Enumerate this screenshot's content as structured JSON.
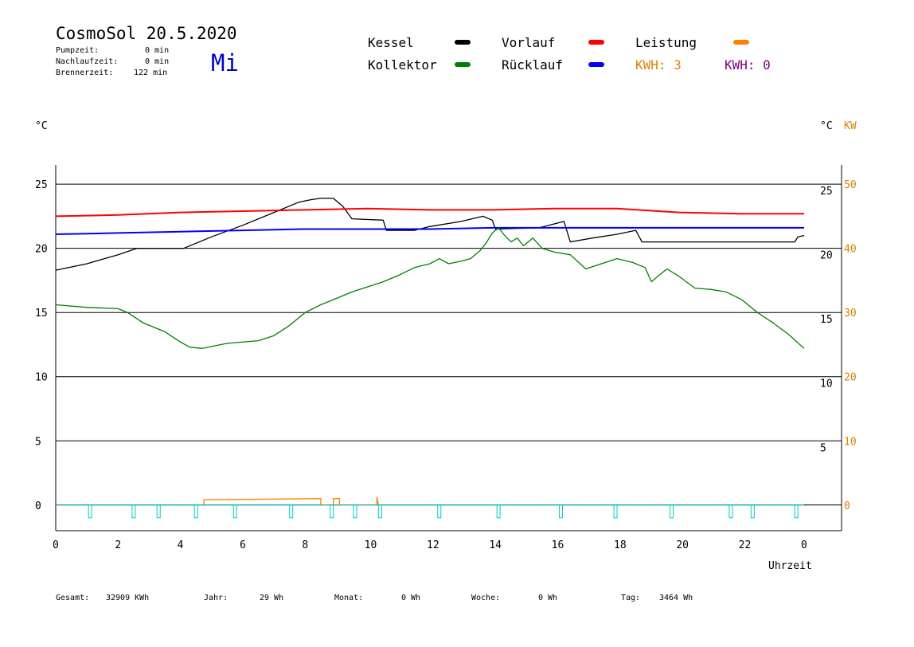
{
  "header": {
    "title": "CosmoSol 20.5.2020",
    "weekday": "Mi",
    "stats": [
      {
        "label": "Pumpzeit:",
        "value": "0 min"
      },
      {
        "label": "Nachlaufzeit:",
        "value": "0 min"
      },
      {
        "label": "Brennerzeit:",
        "value": "122 min"
      }
    ]
  },
  "legend": {
    "items": [
      {
        "label": "Kessel",
        "color": "#000000"
      },
      {
        "label": "Vorlauf",
        "color": "#ff0000"
      },
      {
        "label": "Leistung",
        "color": "#ff8000"
      },
      {
        "label": "Kollektor",
        "color": "#008000"
      },
      {
        "label": "Rücklauf",
        "color": "#0000ff"
      }
    ],
    "kwh_1": {
      "label": "KWH: 3",
      "color": "#e08000"
    },
    "kwh_2": {
      "label": "KWH: 0",
      "color": "#800080"
    }
  },
  "footer": [
    {
      "label": "Gesamt:",
      "value": "32909 KWh"
    },
    {
      "label": "Jahr:",
      "value": "29 Wh"
    },
    {
      "label": "Monat:",
      "value": "0 Wh"
    },
    {
      "label": "Woche:",
      "value": "0 Wh"
    },
    {
      "label": "Tag:",
      "value": "3464 Wh"
    }
  ],
  "chart_data": {
    "type": "line",
    "xlabel": "Uhrzeit",
    "ylabel_left": "°C",
    "ylabel_right": "°C",
    "ylabel_right2": "KW",
    "xlim": [
      0,
      24
    ],
    "ylim": [
      -2,
      26.5
    ],
    "x_ticks": [
      "0",
      "2",
      "4",
      "6",
      "8",
      "10",
      "12",
      "14",
      "16",
      "18",
      "20",
      "22",
      "0"
    ],
    "y_ticks_left": [
      0,
      5,
      10,
      15,
      20,
      25
    ],
    "y_ticks_right": [
      "5",
      "10",
      "15",
      "20",
      "25"
    ],
    "y_ticks_kw": [
      "0",
      "10",
      "20",
      "30",
      "40",
      "50"
    ],
    "grid": true,
    "series": [
      {
        "name": "Kessel",
        "color": "#000000",
        "points": [
          [
            0,
            18.3
          ],
          [
            1,
            18.8
          ],
          [
            2,
            19.5
          ],
          [
            2.6,
            20
          ],
          [
            4.1,
            20
          ],
          [
            5,
            20.9
          ],
          [
            6,
            21.8
          ],
          [
            7,
            22.8
          ],
          [
            7.8,
            23.6
          ],
          [
            8.2,
            23.8
          ],
          [
            8.5,
            23.9
          ],
          [
            8.9,
            23.9
          ],
          [
            9.2,
            23.3
          ],
          [
            9.5,
            22.3
          ],
          [
            10.5,
            22.2
          ],
          [
            10.6,
            21.4
          ],
          [
            11.5,
            21.4
          ],
          [
            12,
            21.7
          ],
          [
            13,
            22.1
          ],
          [
            13.7,
            22.5
          ],
          [
            14,
            22.2
          ],
          [
            14.1,
            21.5
          ],
          [
            15.5,
            21.6
          ],
          [
            16.3,
            22.1
          ],
          [
            16.5,
            20.5
          ],
          [
            17.2,
            20.8
          ],
          [
            18,
            21.1
          ],
          [
            18.6,
            21.4
          ],
          [
            18.8,
            20.5
          ],
          [
            19.5,
            20.5
          ],
          [
            22,
            20.5
          ],
          [
            23.7,
            20.5
          ],
          [
            23.8,
            20.9
          ],
          [
            24,
            21
          ]
        ]
      },
      {
        "name": "Vorlauf",
        "color": "#ff0000",
        "points": [
          [
            0,
            22.5
          ],
          [
            2,
            22.6
          ],
          [
            4,
            22.8
          ],
          [
            6,
            22.9
          ],
          [
            8,
            23
          ],
          [
            10,
            23.1
          ],
          [
            12,
            23
          ],
          [
            14,
            23
          ],
          [
            16,
            23.1
          ],
          [
            18,
            23.1
          ],
          [
            20,
            22.8
          ],
          [
            22,
            22.7
          ],
          [
            24,
            22.7
          ]
        ]
      },
      {
        "name": "Rücklauf",
        "color": "#0000ff",
        "points": [
          [
            0,
            21.1
          ],
          [
            2,
            21.2
          ],
          [
            4,
            21.3
          ],
          [
            6,
            21.4
          ],
          [
            8,
            21.5
          ],
          [
            10,
            21.5
          ],
          [
            12,
            21.5
          ],
          [
            14,
            21.6
          ],
          [
            16,
            21.6
          ],
          [
            18,
            21.6
          ],
          [
            20,
            21.6
          ],
          [
            22,
            21.6
          ],
          [
            24,
            21.6
          ]
        ]
      },
      {
        "name": "Kollektor",
        "color": "#008000",
        "points": [
          [
            0,
            15.6
          ],
          [
            1,
            15.4
          ],
          [
            2,
            15.3
          ],
          [
            2.3,
            15
          ],
          [
            2.8,
            14.2
          ],
          [
            3.5,
            13.5
          ],
          [
            4,
            12.7
          ],
          [
            4.3,
            12.3
          ],
          [
            4.7,
            12.2
          ],
          [
            5.5,
            12.6
          ],
          [
            6.5,
            12.8
          ],
          [
            7,
            13.2
          ],
          [
            7.5,
            14
          ],
          [
            8,
            15
          ],
          [
            8.5,
            15.6
          ],
          [
            9,
            16.1
          ],
          [
            9.5,
            16.6
          ],
          [
            10,
            17
          ],
          [
            10.5,
            17.4
          ],
          [
            11,
            17.9
          ],
          [
            11.5,
            18.5
          ],
          [
            12,
            18.8
          ],
          [
            12.3,
            19.2
          ],
          [
            12.6,
            18.8
          ],
          [
            13,
            19
          ],
          [
            13.3,
            19.2
          ],
          [
            13.6,
            19.8
          ],
          [
            13.8,
            20.4
          ],
          [
            14,
            21.2
          ],
          [
            14.2,
            21.6
          ],
          [
            14.4,
            21
          ],
          [
            14.6,
            20.5
          ],
          [
            14.8,
            20.8
          ],
          [
            15,
            20.2
          ],
          [
            15.3,
            20.8
          ],
          [
            15.6,
            20
          ],
          [
            16,
            19.7
          ],
          [
            16.5,
            19.5
          ],
          [
            17,
            18.4
          ],
          [
            17.5,
            18.8
          ],
          [
            18,
            19.2
          ],
          [
            18.5,
            18.9
          ],
          [
            18.9,
            18.5
          ],
          [
            19.1,
            17.4
          ],
          [
            19.3,
            17.8
          ],
          [
            19.6,
            18.4
          ],
          [
            20,
            17.8
          ],
          [
            20.5,
            16.9
          ],
          [
            21,
            16.8
          ],
          [
            21.5,
            16.6
          ],
          [
            22,
            16
          ],
          [
            22.5,
            15
          ],
          [
            23,
            14.2
          ],
          [
            23.5,
            13.3
          ],
          [
            24,
            12.2
          ]
        ]
      },
      {
        "name": "Leistung",
        "color": "#ff8000",
        "points": [
          [
            4.75,
            0
          ],
          [
            4.75,
            0.4
          ],
          [
            8.5,
            0.5
          ],
          [
            8.5,
            0
          ],
          [
            8.9,
            0
          ],
          [
            8.9,
            0.5
          ],
          [
            9.1,
            0.5
          ],
          [
            9.1,
            0
          ],
          [
            10.3,
            0
          ],
          [
            10.3,
            0.6
          ],
          [
            10.35,
            0
          ]
        ]
      }
    ],
    "pump_pulses_x": [
      1.1,
      2.5,
      3.3,
      4.5,
      5.75,
      7.55,
      8.85,
      9.6,
      10.4,
      12.3,
      14.2,
      16.2,
      17.95,
      19.75,
      21.65,
      22.35,
      23.75
    ],
    "pump_color": "#00cccc"
  }
}
